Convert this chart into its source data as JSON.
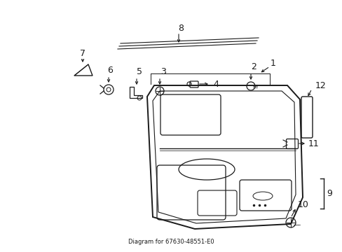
{
  "bg_color": "#ffffff",
  "line_color": "#1a1a1a",
  "text_color": "#1a1a1a",
  "fig_width": 4.89,
  "fig_height": 3.6,
  "dpi": 100,
  "title": "Diagram for 67630-48551-E0"
}
